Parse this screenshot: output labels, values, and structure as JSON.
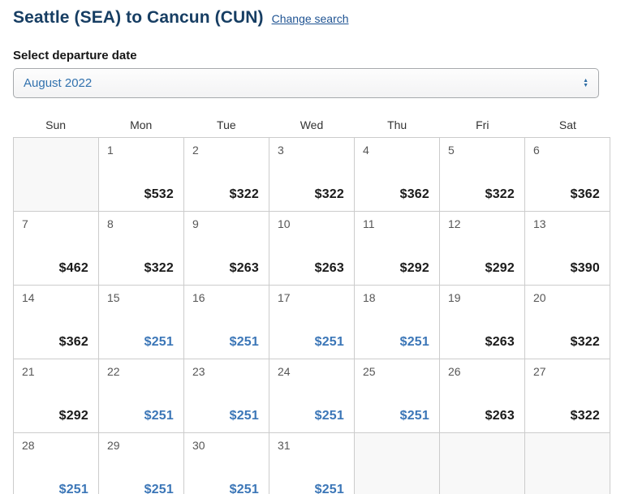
{
  "header": {
    "title": "Seattle (SEA) to Cancun (CUN)",
    "change_search_label": "Change search"
  },
  "departure": {
    "label": "Select departure date",
    "selected_month": "August 2022"
  },
  "calendar": {
    "weekday_headers": [
      "Sun",
      "Mon",
      "Tue",
      "Wed",
      "Thu",
      "Fri",
      "Sat"
    ],
    "weeks": [
      [
        {
          "day": "",
          "price": "",
          "lowest": false
        },
        {
          "day": "1",
          "price": "$532",
          "lowest": false
        },
        {
          "day": "2",
          "price": "$322",
          "lowest": false
        },
        {
          "day": "3",
          "price": "$322",
          "lowest": false
        },
        {
          "day": "4",
          "price": "$362",
          "lowest": false
        },
        {
          "day": "5",
          "price": "$322",
          "lowest": false
        },
        {
          "day": "6",
          "price": "$362",
          "lowest": false
        }
      ],
      [
        {
          "day": "7",
          "price": "$462",
          "lowest": false
        },
        {
          "day": "8",
          "price": "$322",
          "lowest": false
        },
        {
          "day": "9",
          "price": "$263",
          "lowest": false
        },
        {
          "day": "10",
          "price": "$263",
          "lowest": false
        },
        {
          "day": "11",
          "price": "$292",
          "lowest": false
        },
        {
          "day": "12",
          "price": "$292",
          "lowest": false
        },
        {
          "day": "13",
          "price": "$390",
          "lowest": false
        }
      ],
      [
        {
          "day": "14",
          "price": "$362",
          "lowest": false
        },
        {
          "day": "15",
          "price": "$251",
          "lowest": true
        },
        {
          "day": "16",
          "price": "$251",
          "lowest": true
        },
        {
          "day": "17",
          "price": "$251",
          "lowest": true
        },
        {
          "day": "18",
          "price": "$251",
          "lowest": true
        },
        {
          "day": "19",
          "price": "$263",
          "lowest": false
        },
        {
          "day": "20",
          "price": "$322",
          "lowest": false
        }
      ],
      [
        {
          "day": "21",
          "price": "$292",
          "lowest": false
        },
        {
          "day": "22",
          "price": "$251",
          "lowest": true
        },
        {
          "day": "23",
          "price": "$251",
          "lowest": true
        },
        {
          "day": "24",
          "price": "$251",
          "lowest": true
        },
        {
          "day": "25",
          "price": "$251",
          "lowest": true
        },
        {
          "day": "26",
          "price": "$263",
          "lowest": false
        },
        {
          "day": "27",
          "price": "$322",
          "lowest": false
        }
      ],
      [
        {
          "day": "28",
          "price": "$251",
          "lowest": true
        },
        {
          "day": "29",
          "price": "$251",
          "lowest": true
        },
        {
          "day": "30",
          "price": "$251",
          "lowest": true
        },
        {
          "day": "31",
          "price": "$251",
          "lowest": true
        },
        {
          "day": "",
          "price": "",
          "lowest": false
        },
        {
          "day": "",
          "price": "",
          "lowest": false
        },
        {
          "day": "",
          "price": "",
          "lowest": false
        }
      ]
    ]
  },
  "icons": {
    "select_up_arrow": "▲",
    "select_down_arrow": "▼"
  },
  "colors": {
    "title_navy": "#173e63",
    "link_blue": "#205493",
    "lowest_fare_blue": "#3b76b7",
    "fare_black": "#1a1a1a",
    "grid_border": "#cccccc",
    "empty_cell_bg": "#f8f8f8"
  }
}
